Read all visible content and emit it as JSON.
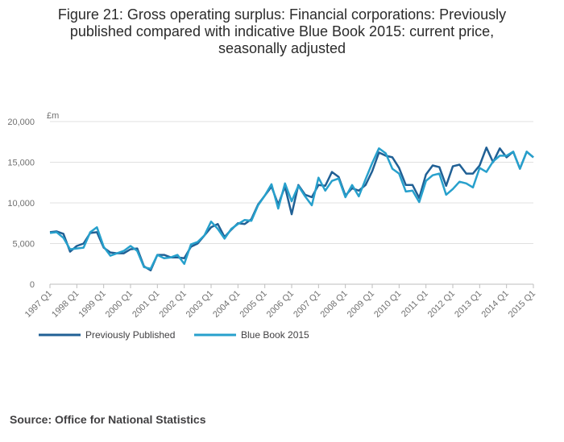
{
  "title_lines": [
    "Figure 21: Gross operating surplus: Financial corporations: Previously",
    "published compared with indicative Blue Book 2015: current price,",
    "seasonally adjusted"
  ],
  "source": "Source: Office for National Statistics",
  "colors": {
    "previous": "#206095",
    "bluebook": "#27a0cc",
    "grid": "#e0e0e0",
    "axis": "#bebebe"
  },
  "chart_data": {
    "type": "line",
    "title": "Figure 21: Gross operating surplus: Financial corporations: Previously published compared with indicative Blue Book 2015: current price, seasonally adjusted",
    "ylabel": "£m",
    "xlabel": "",
    "ylim": [
      0,
      20000
    ],
    "yticks": [
      0,
      5000,
      10000,
      15000,
      20000
    ],
    "ytick_labels": [
      "0",
      "5,000",
      "10,000",
      "15,000",
      "20,000"
    ],
    "xtick_labels": [
      "1997 Q1",
      "1998 Q1",
      "1999 Q1",
      "2000 Q1",
      "2001 Q1",
      "2002 Q1",
      "2003 Q1",
      "2004 Q1",
      "2005 Q1",
      "2006 Q1",
      "2007 Q1",
      "2008 Q1",
      "2009 Q1",
      "2010 Q1",
      "2011 Q1",
      "2012 Q1",
      "2013 Q1",
      "2014 Q1",
      "2015 Q1"
    ],
    "legend_position": "bottom-left",
    "series": [
      {
        "name": "Previously Published",
        "values": [
          6400,
          6500,
          6200,
          4000,
          4700,
          5000,
          6300,
          6400,
          4500,
          3900,
          3800,
          3800,
          4300,
          4400,
          2200,
          1700,
          3600,
          3600,
          3300,
          3300,
          3200,
          4600,
          5000,
          6000,
          7000,
          7400,
          5800,
          6700,
          7500,
          7400,
          8000,
          9800,
          10900,
          12000,
          9800,
          12000,
          8600,
          12200,
          11000,
          10700,
          12200,
          12100,
          13800,
          13200,
          10900,
          11800,
          11500,
          12200,
          13900,
          16200,
          15800,
          15600,
          14300,
          12200,
          12200,
          10600,
          13500,
          14600,
          14400,
          12100,
          14500,
          14700,
          13600,
          13600,
          14600,
          16800,
          15000,
          16700,
          15600,
          16300,
          14200,
          16300,
          15600
        ]
      },
      {
        "name": "Blue Book 2015",
        "values": [
          6300,
          6400,
          5700,
          4300,
          4400,
          4500,
          6400,
          7000,
          4600,
          3500,
          3800,
          4100,
          4700,
          4100,
          2100,
          1900,
          3600,
          3200,
          3300,
          3600,
          2500,
          4900,
          5200,
          6000,
          7700,
          6800,
          5600,
          6800,
          7400,
          7900,
          7800,
          9700,
          10900,
          12300,
          9300,
          12400,
          10200,
          12100,
          10800,
          9700,
          13100,
          11500,
          12700,
          13000,
          10700,
          12200,
          10800,
          12900,
          14900,
          16700,
          16100,
          14200,
          13600,
          11400,
          11500,
          10100,
          12700,
          13400,
          13600,
          11000,
          11700,
          12600,
          12400,
          11900,
          14300,
          13800,
          15100,
          15800,
          15800,
          16300,
          14200,
          16300,
          15600
        ]
      }
    ]
  }
}
